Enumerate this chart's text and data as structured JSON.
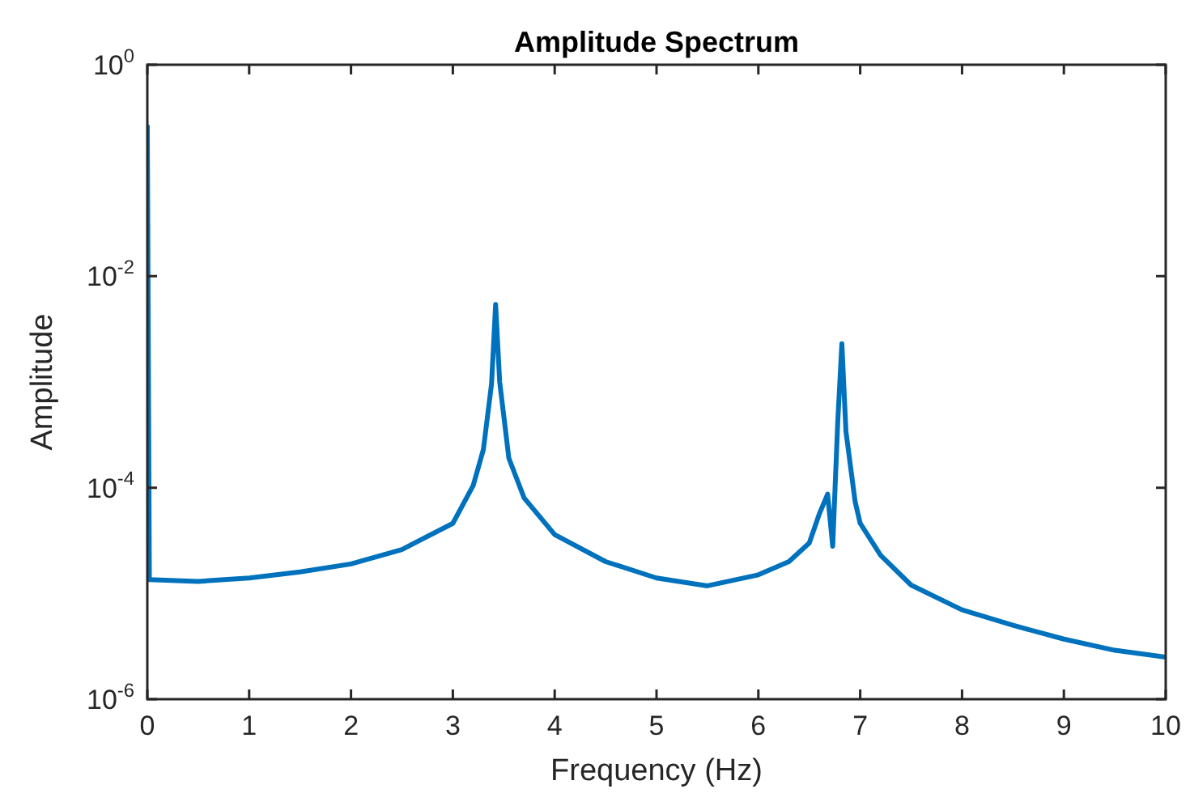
{
  "chart_data": {
    "type": "line",
    "title": "Amplitude Spectrum",
    "xlabel": "Frequency (Hz)",
    "ylabel": "Amplitude",
    "log": "y",
    "grid": false,
    "legend": false,
    "marker": "none",
    "line_style": "solid",
    "xlim": [
      0,
      10
    ],
    "xticks": [
      0,
      1,
      2,
      3,
      4,
      5,
      6,
      7,
      8,
      9,
      10
    ],
    "ylim": [
      1e-06,
      1
    ],
    "yticks": [
      {
        "value": 1e-06,
        "label": "10$^{-6}$"
      },
      {
        "value": 0.0001,
        "label": "10$^{-4}$"
      },
      {
        "value": 0.01,
        "label": "10$^{-2}$"
      },
      {
        "value": 1,
        "label": "10$^{0}$"
      }
    ],
    "series": [
      {
        "color": "#0072bd",
        "x": [
          0,
          0.02,
          0.5,
          1,
          1.5,
          2,
          2.5,
          3,
          3.2,
          3.3,
          3.38,
          3.42,
          3.46,
          3.55,
          3.7,
          4,
          4.5,
          5,
          5.5,
          6,
          6.3,
          6.5,
          6.6,
          6.68,
          6.73,
          6.78,
          6.82,
          6.86,
          6.95,
          7,
          7.2,
          7.5,
          8,
          8.5,
          9,
          9.5,
          10
        ],
        "values": [
          0.26,
          1.35e-05,
          1.3e-05,
          1.4e-05,
          1.6e-05,
          1.9e-05,
          2.6e-05,
          4.6e-05,
          0.000105,
          0.00023,
          0.00096,
          0.0054,
          0.001,
          0.00019,
          8e-05,
          3.6e-05,
          2e-05,
          1.4e-05,
          1.18e-05,
          1.5e-05,
          2e-05,
          3e-05,
          5.7e-05,
          8.7e-05,
          2.8e-05,
          0.00043,
          0.0023,
          0.00034,
          7.4e-05,
          4.6e-05,
          2.3e-05,
          1.2e-05,
          7e-06,
          5e-06,
          3.7e-06,
          2.9e-06,
          2.5e-06
        ]
      }
    ]
  }
}
